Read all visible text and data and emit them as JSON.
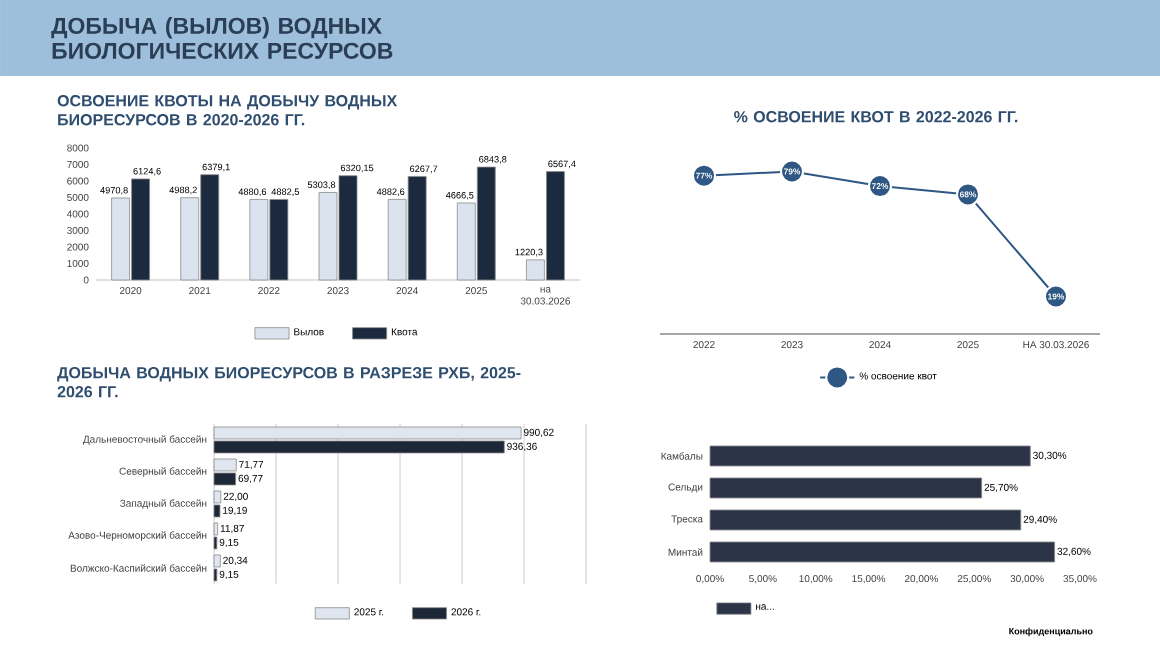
{
  "chart_data": [
    {
      "type": "other",
      "title": "ДОБЫЧА (ВЫЛОВ) ВОДНЫХ БИОЛОГИЧЕСКИХ РЕСУРСОВ",
      "annotations": [
        "Конфиденциально"
      ]
    },
    {
      "type": "bar",
      "title": "ОСВОЕНИЕ КВОТЫ НА ДОБЫЧУ ВОДНЫХ БИОРЕСУРСОВ В 2020-2026 ГГ.",
      "categories": [
        "2020",
        "2021",
        "2022",
        "2023",
        "2024",
        "2025",
        "на 30.03.2026"
      ],
      "ylim": [
        0,
        8000
      ],
      "yticks": [
        0,
        1000,
        2000,
        3000,
        4000,
        5000,
        6000,
        7000,
        8000
      ],
      "legend": "bottom",
      "series": [
        {
          "name": "Вылов",
          "color": "#dbe3ee",
          "values": [
            4970.8,
            4988.2,
            4880.6,
            5303.8,
            4882.6,
            4666.5,
            1220.3
          ],
          "value_labels": [
            "4970,8",
            "4988,2",
            "4880,6",
            "5303,8",
            "4882,6",
            "4666,5",
            "1220,3"
          ]
        },
        {
          "name": "Квота",
          "color": "#1b2a3e",
          "values": [
            6124.6,
            6379.1,
            4882.5,
            6320.15,
            6267.7,
            6843.8,
            6567.4
          ],
          "value_labels": [
            "6124,6",
            "6379,1",
            "4882,5",
            "6320,15",
            "6267,7",
            "6843,8",
            "6567,4"
          ]
        }
      ]
    },
    {
      "type": "line",
      "title": "% ОСВОЕНИЕ КВОТ В 2022-2026 ГГ.",
      "categories": [
        "2022",
        "2023",
        "2024",
        "2025",
        "НА 30.03.2026"
      ],
      "tick_labels": "x",
      "legend": "bottom",
      "marker": "circle",
      "series": [
        {
          "name": "% освоение квот",
          "color": "#2e5783",
          "values": [
            77,
            79,
            72,
            68,
            19
          ],
          "value_labels": [
            "77%",
            "79%",
            "72%",
            "68%",
            "19%"
          ]
        }
      ]
    },
    {
      "type": "bar",
      "orientation": "horizontal",
      "title": "ДОБЫЧА ВОДНЫХ БИОРЕСУРСОВ В РАЗРЕЗЕ РХБ, 2025-2026 ГГ.",
      "categories": [
        "Дальневосточный бассейн",
        "Северный бассейн",
        "Западный бассейн",
        "Азово-Черноморский бассейн",
        "Волжско-Каспийский бассейн"
      ],
      "xlim": [
        0,
        1200
      ],
      "xticks": [
        {
          "value": 0,
          "label": null
        },
        {
          "value": 200,
          "label": null
        },
        {
          "value": 400,
          "label": null
        },
        {
          "value": 600,
          "label": null
        },
        {
          "value": 800,
          "label": null
        },
        {
          "value": 1000,
          "label": null
        },
        {
          "value": 1200,
          "label": null
        }
      ],
      "tick_labels": "y",
      "grid": "x",
      "legend": "bottom",
      "series": [
        {
          "name": "2025 г.",
          "color": "#dfe6f0",
          "values": [
            990.62,
            71.77,
            22.0,
            11.87,
            20.34
          ],
          "value_labels": [
            "990,62",
            "71,77",
            "22,00",
            "11,87",
            "20,34"
          ]
        },
        {
          "name": "2026 г.",
          "color": "#1c2738",
          "values": [
            936.36,
            69.77,
            19.19,
            9.15,
            9.15
          ],
          "value_labels": [
            "936,36",
            "69,77",
            "19,19",
            "9,15",
            "9,15"
          ]
        }
      ]
    },
    {
      "type": "bar",
      "orientation": "horizontal",
      "categories": [
        "Камбалы",
        "Сельди",
        "Треска",
        "Минтай"
      ],
      "xlim": [
        0,
        35
      ],
      "xticks": [
        {
          "value": 0,
          "label": "0,00%"
        },
        {
          "value": 5,
          "label": "5,00%"
        },
        {
          "value": 10,
          "label": "10,00%"
        },
        {
          "value": 15,
          "label": "15,00%"
        },
        {
          "value": 20,
          "label": "20,00%"
        },
        {
          "value": 25,
          "label": "25,00%"
        },
        {
          "value": 30,
          "label": "30,00%"
        },
        {
          "value": 35,
          "label": "35,00%"
        }
      ],
      "legend": "bottom left",
      "series": [
        {
          "name": "на...",
          "color": "#2c3548",
          "values": [
            30.3,
            25.7,
            29.4,
            32.6
          ],
          "value_labels": [
            "30,30%",
            "25,70%",
            "29,40%",
            "32,60%"
          ]
        }
      ]
    }
  ]
}
